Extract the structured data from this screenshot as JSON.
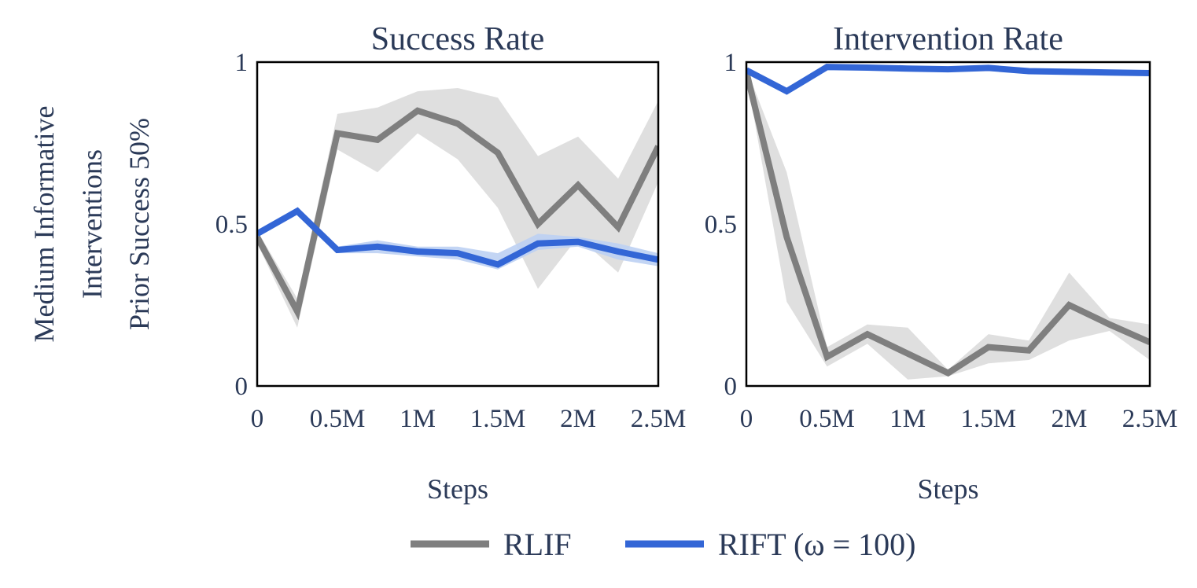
{
  "row_label": [
    "Medium Informative",
    "Interventions",
    "Prior Success 50%"
  ],
  "legend": [
    {
      "label": "RLIF",
      "color": "#7f7f7f"
    },
    {
      "label": "RIFT (ω = 100)",
      "color": "#3366d6"
    }
  ],
  "chart_data": [
    {
      "type": "line",
      "title": "Success Rate",
      "xlabel": "Steps",
      "ylabel": "",
      "xlim": [
        0,
        2.5
      ],
      "ylim": [
        0,
        1
      ],
      "x_ticks": [
        0,
        0.5,
        1,
        1.5,
        2,
        2.5
      ],
      "x_tick_labels": [
        "0",
        "0.5M",
        "1M",
        "1.5M",
        "2M",
        "2.5M"
      ],
      "y_ticks": [
        0,
        0.5,
        1
      ],
      "y_tick_labels": [
        "0",
        "0.5",
        "1"
      ],
      "x": [
        0,
        0.25,
        0.5,
        0.75,
        1.0,
        1.25,
        1.5,
        1.75,
        2.0,
        2.25,
        2.5
      ],
      "series": [
        {
          "name": "RLIF",
          "color": "#7f7f7f",
          "band_color": "#d9d9d9",
          "values": [
            0.46,
            0.23,
            0.78,
            0.76,
            0.85,
            0.81,
            0.72,
            0.5,
            0.62,
            0.49,
            0.74
          ],
          "lower": [
            0.44,
            0.18,
            0.73,
            0.66,
            0.78,
            0.7,
            0.55,
            0.3,
            0.46,
            0.35,
            0.63
          ],
          "upper": [
            0.48,
            0.27,
            0.84,
            0.86,
            0.91,
            0.92,
            0.89,
            0.71,
            0.77,
            0.64,
            0.88
          ]
        },
        {
          "name": "RIFT (ω = 100)",
          "color": "#3366d6",
          "band_color": "#bcd0f3",
          "values": [
            0.47,
            0.54,
            0.42,
            0.43,
            0.415,
            0.41,
            0.375,
            0.44,
            0.445,
            0.415,
            0.39
          ],
          "lower": [
            0.46,
            0.53,
            0.41,
            0.41,
            0.4,
            0.39,
            0.36,
            0.42,
            0.43,
            0.39,
            0.37
          ],
          "upper": [
            0.48,
            0.55,
            0.43,
            0.45,
            0.43,
            0.43,
            0.41,
            0.47,
            0.46,
            0.44,
            0.41
          ]
        }
      ]
    },
    {
      "type": "line",
      "title": "Intervention Rate",
      "xlabel": "Steps",
      "ylabel": "",
      "xlim": [
        0,
        2.5
      ],
      "ylim": [
        0,
        1
      ],
      "x_ticks": [
        0,
        0.5,
        1,
        1.5,
        2,
        2.5
      ],
      "x_tick_labels": [
        "0",
        "0.5M",
        "1M",
        "1.5M",
        "2M",
        "2.5M"
      ],
      "y_ticks": [
        0,
        0.5,
        1
      ],
      "y_tick_labels": [
        "0",
        "0.5",
        "1"
      ],
      "x": [
        0,
        0.25,
        0.5,
        0.75,
        1.0,
        1.25,
        1.5,
        1.75,
        2.0,
        2.25,
        2.5
      ],
      "series": [
        {
          "name": "RLIF",
          "color": "#7f7f7f",
          "band_color": "#d9d9d9",
          "values": [
            0.97,
            0.46,
            0.09,
            0.16,
            0.1,
            0.04,
            0.12,
            0.11,
            0.25,
            0.19,
            0.135
          ],
          "lower": [
            0.96,
            0.26,
            0.06,
            0.13,
            0.02,
            0.03,
            0.07,
            0.08,
            0.14,
            0.17,
            0.08
          ],
          "upper": [
            0.98,
            0.66,
            0.12,
            0.19,
            0.18,
            0.05,
            0.16,
            0.14,
            0.35,
            0.21,
            0.19
          ]
        },
        {
          "name": "RIFT (ω = 100)",
          "color": "#3366d6",
          "band_color": "#bcd0f3",
          "values": [
            0.975,
            0.91,
            0.985,
            0.983,
            0.98,
            0.978,
            0.982,
            0.972,
            0.97,
            0.968,
            0.966
          ],
          "lower": [
            0.97,
            0.9,
            0.98,
            0.978,
            0.975,
            0.973,
            0.977,
            0.967,
            0.965,
            0.963,
            0.961
          ],
          "upper": [
            0.98,
            0.92,
            0.99,
            0.988,
            0.985,
            0.983,
            0.987,
            0.977,
            0.975,
            0.973,
            0.971
          ]
        }
      ]
    }
  ]
}
